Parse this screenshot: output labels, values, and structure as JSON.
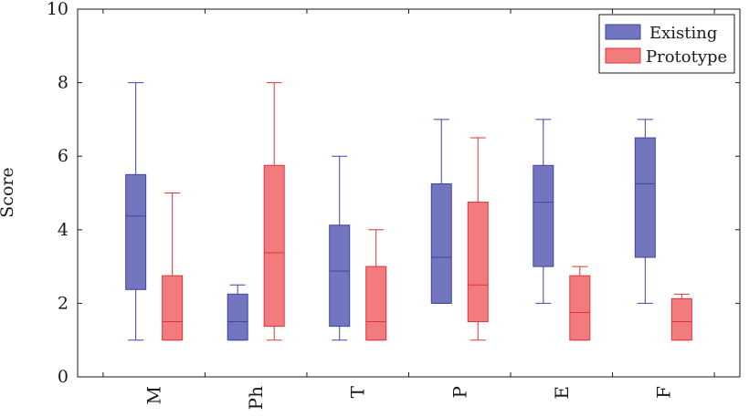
{
  "chart_data": {
    "type": "boxplot",
    "title": "",
    "xlabel": "",
    "ylabel": "Score",
    "ylim": [
      0,
      10
    ],
    "yticks": [
      0,
      2,
      4,
      6,
      8,
      10
    ],
    "grid": false,
    "legend_position": "top-right",
    "categories": [
      "M",
      "Ph",
      "T",
      "P",
      "E",
      "F"
    ],
    "series": [
      {
        "name": "Existing",
        "color": "#7276bf",
        "stroke": "#3f43a3",
        "boxes": [
          {
            "min": 1,
            "q1": 2.375,
            "median": 4.375,
            "q3": 5.5,
            "max": 8
          },
          {
            "min": 1,
            "q1": 1,
            "median": 1.5,
            "q3": 2.25,
            "max": 2.5
          },
          {
            "min": 1,
            "q1": 1.375,
            "median": 2.875,
            "q3": 4.125,
            "max": 6
          },
          {
            "min": 2,
            "q1": 2,
            "median": 3.25,
            "q3": 5.25,
            "max": 7
          },
          {
            "min": 2,
            "q1": 3,
            "median": 4.75,
            "q3": 5.75,
            "max": 7
          },
          {
            "min": 2,
            "q1": 3.25,
            "median": 5.25,
            "q3": 6.5,
            "max": 7
          }
        ]
      },
      {
        "name": "Prototype",
        "color": "#f27b7e",
        "stroke": "#e0323a",
        "boxes": [
          {
            "min": 1,
            "q1": 1,
            "median": 1.5,
            "q3": 2.75,
            "max": 5
          },
          {
            "min": 1,
            "q1": 1.375,
            "median": 3.375,
            "q3": 5.75,
            "max": 8
          },
          {
            "min": 1,
            "q1": 1,
            "median": 1.5,
            "q3": 3,
            "max": 4
          },
          {
            "min": 1,
            "q1": 1.5,
            "median": 2.5,
            "q3": 4.75,
            "max": 6.5
          },
          {
            "min": 1,
            "q1": 1,
            "median": 1.75,
            "q3": 2.75,
            "max": 3
          },
          {
            "min": 1,
            "q1": 1,
            "median": 1.5,
            "q3": 2.125,
            "max": 2.25
          }
        ]
      }
    ]
  }
}
